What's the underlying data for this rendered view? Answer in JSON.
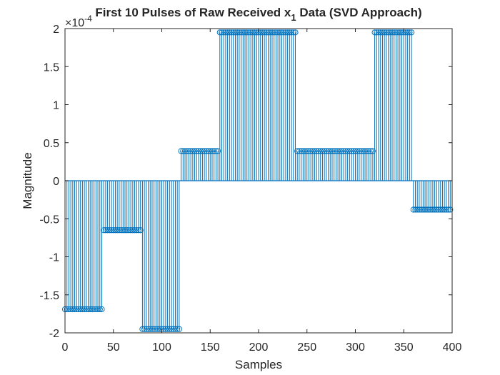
{
  "chart_data": {
    "type": "stem",
    "title": "First 10 Pulses of Raw Received x",
    "title_subscript": "1",
    "title_suffix": " Data (SVD Approach)",
    "xlabel": "Samples",
    "ylabel": "Magnitude",
    "exponent_label": "×10",
    "exponent_value": "-4",
    "xlim": [
      0,
      400
    ],
    "ylim": [
      -2,
      2
    ],
    "x_ticks": [
      "0",
      "50",
      "100",
      "150",
      "200",
      "250",
      "300",
      "350",
      "400"
    ],
    "y_ticks": [
      "-2",
      "-1.5",
      "-1",
      "-0.5",
      "0",
      "0.5",
      "1",
      "1.5",
      "2"
    ],
    "x_step": 2,
    "segments": [
      {
        "x_start": 0,
        "x_end": 40,
        "value": -1.69
      },
      {
        "x_start": 40,
        "x_end": 80,
        "value": -0.65
      },
      {
        "x_start": 80,
        "x_end": 120,
        "value": -1.95
      },
      {
        "x_start": 120,
        "x_end": 160,
        "value": 0.39
      },
      {
        "x_start": 160,
        "x_end": 240,
        "value": 1.95
      },
      {
        "x_start": 240,
        "x_end": 320,
        "value": 0.39
      },
      {
        "x_start": 320,
        "x_end": 360,
        "value": 1.95
      },
      {
        "x_start": 360,
        "x_end": 400,
        "value": -0.38
      }
    ],
    "color": "#0072BD",
    "grid": false,
    "marker": "circle"
  }
}
